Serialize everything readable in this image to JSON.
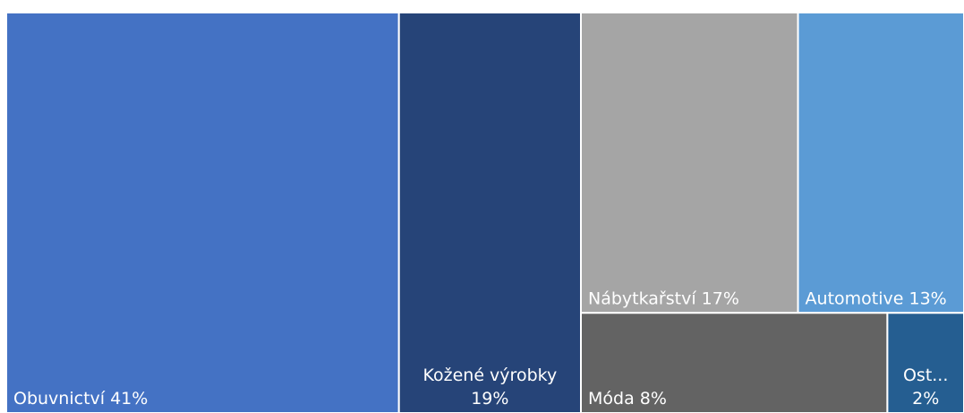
{
  "chart_data": {
    "type": "treemap",
    "categories": [
      "Obuvnictví",
      "Kožené výrobky",
      "Nábytkařství",
      "Automotive",
      "Móda",
      "Ost..."
    ],
    "values": [
      41,
      19,
      17,
      13,
      8,
      2
    ],
    "value_labels": [
      "41%",
      "19%",
      "17%",
      "13%",
      "8%",
      "2%"
    ],
    "colors": [
      "#4472c4",
      "#264478",
      "#a5a5a5",
      "#5b9bd5",
      "#636363",
      "#255e91"
    ]
  }
}
